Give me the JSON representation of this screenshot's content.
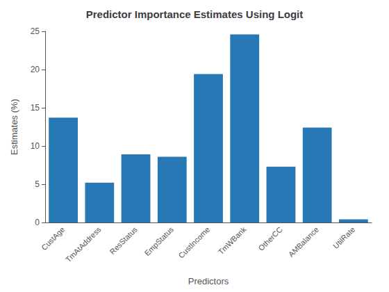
{
  "chart_data": {
    "type": "bar",
    "title": "Predictor Importance Estimates Using Logit",
    "xlabel": "Predictors",
    "ylabel": "Estimates (%)",
    "categories": [
      "CustAge",
      "TmAtAddress",
      "ResStatus",
      "EmpStatus",
      "CustIncome",
      "TmWBank",
      "OtherCC",
      "AMBalance",
      "UtilRate"
    ],
    "values": [
      13.7,
      5.2,
      8.9,
      8.6,
      19.4,
      24.6,
      7.3,
      12.4,
      0.4
    ],
    "color": "#2878b5",
    "ylim": [
      0,
      25
    ],
    "yticks": [
      0,
      5,
      10,
      15,
      20,
      25
    ],
    "grid": false
  }
}
